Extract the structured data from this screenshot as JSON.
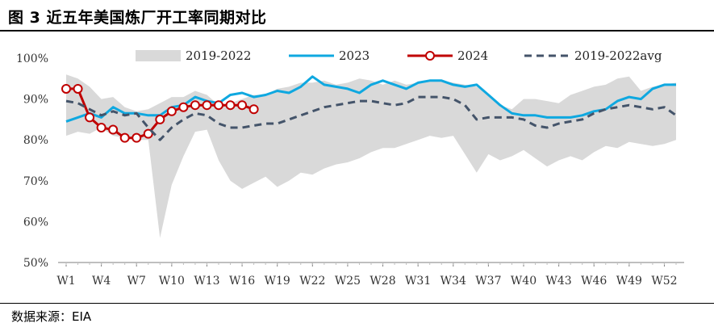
{
  "title": "图 3  近五年美国炼厂开工率同期对比",
  "source": "数据来源：EIA",
  "colors": {
    "band": "#d9d9d9",
    "y2023": "#0fa8e0",
    "y2024": "#c00000",
    "avg": "#44546a"
  },
  "chart_data": {
    "type": "line",
    "title": "近五年美国炼厂开工率同期对比",
    "xlabel": "",
    "ylabel": "",
    "ylim": [
      50,
      100
    ],
    "yticks": [
      "50%",
      "60%",
      "70%",
      "80%",
      "90%",
      "100%"
    ],
    "ytick_values": [
      50,
      60,
      70,
      80,
      90,
      100
    ],
    "xlim": [
      1,
      53
    ],
    "xticks": [
      "W1",
      "W4",
      "W7",
      "W10",
      "W13",
      "W16",
      "W19",
      "W22",
      "W25",
      "W28",
      "W31",
      "W34",
      "W37",
      "W40",
      "W43",
      "W46",
      "W49",
      "W52"
    ],
    "xtick_values": [
      1,
      4,
      7,
      10,
      13,
      16,
      19,
      22,
      25,
      28,
      31,
      34,
      37,
      40,
      43,
      46,
      49,
      52
    ],
    "weeks": [
      1,
      2,
      3,
      4,
      5,
      6,
      7,
      8,
      9,
      10,
      11,
      12,
      13,
      14,
      15,
      16,
      17,
      18,
      19,
      20,
      21,
      22,
      23,
      24,
      25,
      26,
      27,
      28,
      29,
      30,
      31,
      32,
      33,
      34,
      35,
      36,
      37,
      38,
      39,
      40,
      41,
      42,
      43,
      44,
      45,
      46,
      47,
      48,
      49,
      50,
      51,
      52,
      53
    ],
    "legend_position": "top",
    "series": [
      {
        "name": "2019-2022",
        "kind": "band",
        "upper": [
          96,
          95,
          93,
          90,
          90.5,
          88,
          87,
          87.5,
          89,
          90.5,
          90.5,
          92,
          91,
          88.5,
          89,
          90,
          91,
          91,
          92.5,
          93,
          94,
          94,
          94.5,
          93.5,
          94,
          95,
          94.5,
          93.5,
          94.5,
          93.5,
          94,
          94.5,
          94.5,
          94,
          93.5,
          93,
          91,
          88.5,
          87.5,
          90,
          90,
          89.5,
          89,
          91,
          92,
          93,
          93.5,
          95,
          95.5,
          92,
          93,
          93.5,
          94
        ],
        "lower": [
          81,
          82,
          81.5,
          83,
          81,
          80.5,
          80,
          80,
          56,
          69,
          76,
          82,
          82.5,
          75,
          70,
          68,
          69.5,
          71,
          68.5,
          70,
          72,
          71.5,
          73,
          74,
          74.5,
          75.5,
          77,
          78,
          78,
          79,
          80,
          81,
          80.5,
          81,
          76.5,
          72,
          76.5,
          75,
          76,
          77.5,
          75.5,
          73.5,
          75,
          76,
          75,
          77,
          78.5,
          78,
          79.5,
          79,
          78.5,
          79,
          80
        ]
      },
      {
        "name": "2023",
        "kind": "line",
        "values": [
          84.5,
          85.5,
          86.5,
          85.5,
          88,
          86.5,
          86.5,
          86,
          86,
          88,
          88.5,
          90.5,
          89.5,
          89,
          91,
          91.5,
          90.5,
          91,
          92,
          91.5,
          93,
          95.5,
          93.5,
          93,
          92.5,
          91.5,
          93.5,
          94.5,
          93.5,
          92.5,
          94,
          94.5,
          94.5,
          93.5,
          93,
          93.5,
          91,
          88.5,
          86.5,
          86,
          86,
          85.5,
          85.5,
          85.5,
          86,
          87,
          87.5,
          89.5,
          90.5,
          90,
          92.5,
          93.5,
          93.5
        ]
      },
      {
        "name": "2024",
        "kind": "line-marker",
        "values": [
          92.5,
          92.5,
          85.5,
          83,
          82.5,
          80.5,
          80.5,
          81.5,
          85,
          87,
          88,
          88.5,
          88.5,
          88.5,
          88.5,
          88.5,
          87.5
        ]
      },
      {
        "name": "2019-2022avg",
        "kind": "dashed",
        "values": [
          89.5,
          89,
          87.5,
          86,
          87,
          86,
          86.5,
          83,
          80,
          83,
          85,
          86.5,
          86,
          84,
          83,
          83,
          83.5,
          84,
          84,
          85,
          86,
          87,
          88,
          88.5,
          89,
          89.5,
          89.5,
          89,
          88.5,
          89,
          90.5,
          90.5,
          90.5,
          90,
          88.5,
          85,
          85.5,
          85.5,
          85.5,
          85,
          83.5,
          83,
          84,
          84.5,
          85,
          86.5,
          87.5,
          88,
          88.5,
          88,
          87.5,
          88,
          86
        ]
      }
    ]
  }
}
